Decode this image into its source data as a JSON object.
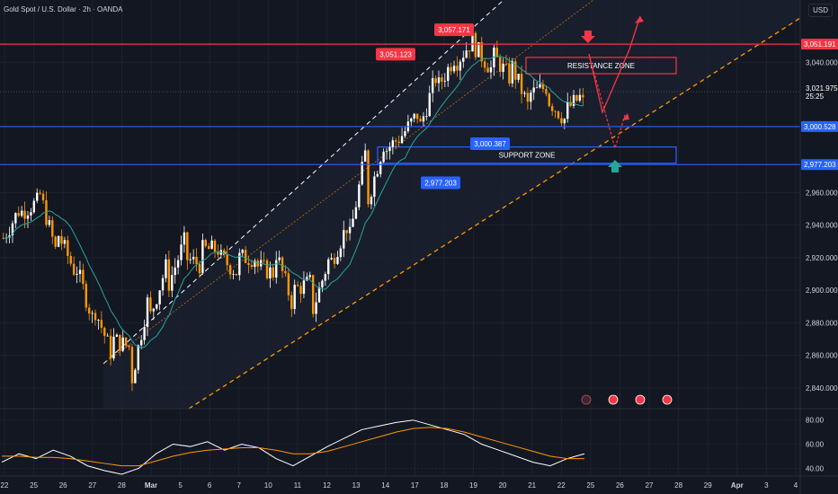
{
  "header": {
    "title": "Gold Spot / U.S. Dollar · 2h · OANDA",
    "currency": "USD"
  },
  "chart_data": [
    {
      "type": "candlestick",
      "title": "Gold Spot / U.S. Dollar · 2h · OANDA",
      "ylim": [
        2830,
        3070
      ],
      "yticks": [
        2840,
        2860,
        2880,
        2900,
        2920,
        2940,
        2960,
        3040
      ],
      "ytick_labels": [
        "2,840.000",
        "2,860.000",
        "2,880.000",
        "2,900.000",
        "2,920.000",
        "2,940.000",
        "2,960.000",
        "3,040.000"
      ],
      "x_labels": [
        "22",
        "25",
        "26",
        "27",
        "28",
        "Mar",
        "5",
        "6",
        "7",
        "10",
        "11",
        "12",
        "13",
        "14",
        "17",
        "18",
        "19",
        "20",
        "21",
        "22",
        "25",
        "26",
        "27",
        "28",
        "29",
        "Apr",
        "3",
        "4"
      ],
      "price_path": [
        [
          2932,
          2945
        ],
        [
          2948,
          2952
        ],
        [
          2960,
          2955
        ],
        [
          2935,
          2920
        ],
        [
          2915,
          2910
        ],
        [
          2890,
          2880
        ],
        [
          2870,
          2860
        ],
        [
          2840,
          2865
        ],
        [
          2880,
          2895
        ],
        [
          2900,
          2915
        ],
        [
          2920,
          2930
        ],
        [
          2925,
          2915
        ],
        [
          2920,
          2925
        ],
        [
          2920,
          2910
        ],
        [
          2915,
          2920
        ],
        [
          2925,
          2910
        ],
        [
          2900,
          2890
        ],
        [
          2885,
          2905
        ],
        [
          2915,
          2920
        ],
        [
          2925,
          2940
        ],
        [
          2950,
          2985
        ],
        [
          2985,
          2990
        ],
        [
          2995,
          2995
        ],
        [
          3000,
          3010
        ],
        [
          3025,
          3035
        ],
        [
          3040,
          3045
        ],
        [
          3050,
          3055
        ],
        [
          3045,
          3035
        ],
        [
          3040,
          3030
        ],
        [
          3020,
          3012
        ],
        [
          3018,
          3025
        ],
        [
          3010,
          3005
        ],
        [
          3015,
          3020
        ]
      ],
      "price_lines": [
        {
          "value": 3051.191,
          "label": "3,051.191",
          "color": "#f23645"
        },
        {
          "value": 3021.975,
          "label": "3,021.975",
          "sublabel": "25:25",
          "color": "#ffffff"
        },
        {
          "value": 3000.528,
          "label": "3,000.528",
          "color": "#2962ff"
        },
        {
          "value": 2977.203,
          "label": "2,977.203",
          "color": "#2962ff"
        }
      ],
      "callouts": [
        {
          "label": "3,051.123",
          "color": "#f23645"
        },
        {
          "label": "3,057.171",
          "color": "#f23645"
        },
        {
          "label": "3,000.387",
          "color": "#2962ff"
        },
        {
          "label": "2,977.203",
          "color": "#2962ff"
        }
      ],
      "zones": [
        {
          "label": "RESISTANCE ZONE",
          "range": [
            3033,
            3043
          ],
          "color": "#f23645"
        },
        {
          "label": "SUPPORT ZONE",
          "range": [
            2978,
            2988
          ],
          "color": "#2962ff"
        }
      ]
    },
    {
      "type": "line",
      "title": "",
      "ylim": [
        35,
        85
      ],
      "yticks": [
        40,
        60,
        80
      ],
      "ytick_labels": [
        "40.00",
        "60.00",
        "80.00"
      ],
      "series": [
        {
          "values": [
            45,
            52,
            48,
            55,
            50,
            42,
            38,
            35,
            40,
            52,
            60,
            58,
            62,
            55,
            60,
            57,
            48,
            42,
            50,
            58,
            65,
            72,
            75,
            78,
            80,
            76,
            72,
            68,
            60,
            55,
            50,
            45,
            42,
            48,
            52
          ]
        },
        {
          "values": [
            50,
            50,
            49,
            49,
            48,
            46,
            44,
            42,
            42,
            46,
            50,
            53,
            55,
            56,
            57,
            57,
            55,
            52,
            52,
            54,
            58,
            62,
            66,
            70,
            73,
            74,
            73,
            70,
            66,
            62,
            58,
            54,
            50,
            48,
            48
          ]
        }
      ]
    }
  ],
  "colors": {
    "background": "#131722",
    "grid": "#1e222d",
    "up": "#ffffff",
    "down": "#ff9800",
    "ma": "#26a69a",
    "channel_white": "#ffffff",
    "channel_orange": "#ff9800",
    "red": "#f23645",
    "blue": "#2962ff",
    "rsi": "#ffffff",
    "rsi_ma": "#ff9800",
    "teal_arrow": "#26a69a"
  },
  "icons": [
    "lightning-icon",
    "us-flag-icon",
    "us-flag-icon",
    "us-flag-icon"
  ]
}
